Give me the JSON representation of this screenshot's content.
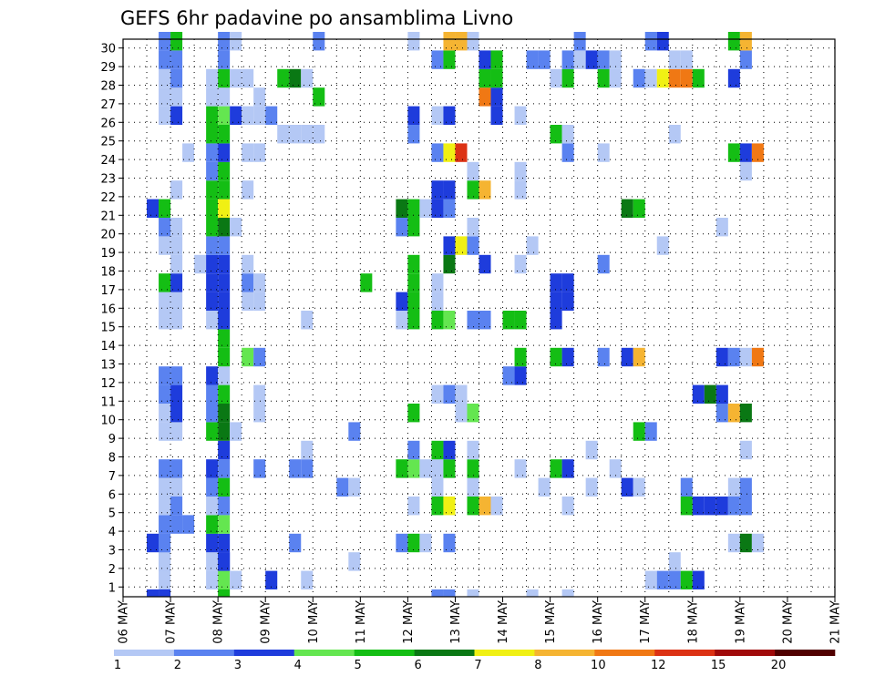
{
  "chart_data": {
    "type": "heatmap",
    "title": "GEFS 6hr padavine po ansamblima Livno",
    "xlabel": "",
    "ylabel": "",
    "x_ticks": [
      "06 MAY",
      "07 MAY",
      "08 MAY",
      "09 MAY",
      "10 MAY",
      "11 MAY",
      "12 MAY",
      "13 MAY",
      "14 MAY",
      "15 MAY",
      "16 MAY",
      "17 MAY",
      "18 MAY",
      "19 MAY",
      "20 MAY",
      "21 MAY"
    ],
    "y_ticks": [
      "1",
      "2",
      "3",
      "4",
      "5",
      "6",
      "7",
      "8",
      "9",
      "10",
      "11",
      "12",
      "13",
      "14",
      "15",
      "16",
      "17",
      "18",
      "19",
      "20",
      "21",
      "22",
      "23",
      "24",
      "25",
      "26",
      "27",
      "28",
      "29",
      "30"
    ],
    "grid": true,
    "steps_per_day": 4,
    "levels": [
      "1",
      "2",
      "3",
      "4",
      "5",
      "6",
      "7",
      "8",
      "10",
      "12",
      "15",
      "20"
    ],
    "colors": [
      "#b4c8f5",
      "#5a82f0",
      "#1e3cdc",
      "#64e650",
      "#14be14",
      "#0a7814",
      "#f0f014",
      "#f5b432",
      "#f07814",
      "#dc3214",
      "#a00a0a",
      "#500000"
    ],
    "cells": [
      [
        3,
        1,
        1
      ],
      [
        3,
        2,
        2
      ],
      [
        3,
        3,
        2
      ],
      [
        7,
        1,
        1
      ],
      [
        8,
        1,
        4
      ],
      [
        8,
        2,
        3
      ],
      [
        9,
        1,
        1
      ],
      [
        12,
        1,
        3
      ],
      [
        15,
        1,
        1
      ],
      [
        44,
        1,
        1
      ],
      [
        45,
        1,
        2
      ],
      [
        46,
        1,
        2
      ],
      [
        47,
        1,
        5
      ],
      [
        48,
        1,
        3
      ],
      [
        3,
        2,
        1
      ],
      [
        7,
        2,
        1
      ],
      [
        8,
        2,
        3
      ],
      [
        19,
        2,
        1
      ],
      [
        46,
        2,
        1
      ],
      [
        2,
        3,
        3
      ],
      [
        3,
        3,
        2
      ],
      [
        7,
        3,
        3
      ],
      [
        8,
        3,
        3
      ],
      [
        14,
        3,
        2
      ],
      [
        23,
        3,
        2
      ],
      [
        24,
        3,
        5
      ],
      [
        25,
        3,
        1
      ],
      [
        27,
        3,
        2
      ],
      [
        51,
        3,
        1
      ],
      [
        52,
        3,
        6
      ],
      [
        53,
        3,
        1
      ],
      [
        3,
        4,
        2
      ],
      [
        4,
        4,
        2
      ],
      [
        5,
        4,
        2
      ],
      [
        7,
        4,
        5
      ],
      [
        8,
        4,
        4
      ],
      [
        3,
        5,
        1
      ],
      [
        4,
        5,
        2
      ],
      [
        7,
        5,
        1
      ],
      [
        8,
        5,
        2
      ],
      [
        24,
        5,
        1
      ],
      [
        26,
        5,
        5
      ],
      [
        27,
        5,
        7
      ],
      [
        29,
        5,
        5
      ],
      [
        30,
        5,
        8
      ],
      [
        31,
        5,
        1
      ],
      [
        37,
        5,
        1
      ],
      [
        47,
        5,
        5
      ],
      [
        48,
        5,
        3
      ],
      [
        49,
        5,
        3
      ],
      [
        50,
        5,
        3
      ],
      [
        51,
        5,
        2
      ],
      [
        52,
        5,
        2
      ],
      [
        3,
        6,
        1
      ],
      [
        4,
        6,
        1
      ],
      [
        7,
        6,
        2
      ],
      [
        8,
        6,
        5
      ],
      [
        18,
        6,
        2
      ],
      [
        19,
        6,
        1
      ],
      [
        26,
        6,
        1
      ],
      [
        29,
        6,
        1
      ],
      [
        35,
        6,
        1
      ],
      [
        39,
        6,
        1
      ],
      [
        42,
        6,
        3
      ],
      [
        43,
        6,
        1
      ],
      [
        47,
        6,
        2
      ],
      [
        51,
        6,
        1
      ],
      [
        52,
        6,
        2
      ],
      [
        3,
        7,
        2
      ],
      [
        4,
        7,
        2
      ],
      [
        7,
        7,
        3
      ],
      [
        8,
        7,
        2
      ],
      [
        11,
        7,
        2
      ],
      [
        14,
        7,
        2
      ],
      [
        15,
        7,
        2
      ],
      [
        23,
        7,
        5
      ],
      [
        24,
        7,
        4
      ],
      [
        25,
        7,
        1
      ],
      [
        26,
        7,
        1
      ],
      [
        27,
        7,
        5
      ],
      [
        29,
        7,
        5
      ],
      [
        33,
        7,
        1
      ],
      [
        36,
        7,
        5
      ],
      [
        37,
        7,
        3
      ],
      [
        41,
        7,
        1
      ],
      [
        8,
        8,
        3
      ],
      [
        15,
        8,
        1
      ],
      [
        24,
        8,
        2
      ],
      [
        26,
        8,
        5
      ],
      [
        27,
        8,
        3
      ],
      [
        29,
        8,
        1
      ],
      [
        39,
        8,
        1
      ],
      [
        52,
        8,
        1
      ],
      [
        3,
        9,
        1
      ],
      [
        4,
        9,
        1
      ],
      [
        7,
        9,
        5
      ],
      [
        8,
        9,
        6
      ],
      [
        9,
        9,
        1
      ],
      [
        19,
        9,
        2
      ],
      [
        43,
        9,
        5
      ],
      [
        44,
        9,
        2
      ],
      [
        3,
        10,
        1
      ],
      [
        4,
        10,
        3
      ],
      [
        7,
        10,
        2
      ],
      [
        8,
        10,
        6
      ],
      [
        11,
        10,
        1
      ],
      [
        24,
        10,
        5
      ],
      [
        28,
        10,
        1
      ],
      [
        29,
        10,
        4
      ],
      [
        50,
        10,
        2
      ],
      [
        51,
        10,
        8
      ],
      [
        52,
        10,
        6
      ],
      [
        3,
        11,
        2
      ],
      [
        4,
        11,
        3
      ],
      [
        7,
        11,
        2
      ],
      [
        8,
        11,
        5
      ],
      [
        11,
        11,
        1
      ],
      [
        26,
        11,
        1
      ],
      [
        27,
        11,
        2
      ],
      [
        28,
        11,
        1
      ],
      [
        48,
        11,
        3
      ],
      [
        49,
        11,
        6
      ],
      [
        50,
        11,
        3
      ],
      [
        3,
        12,
        2
      ],
      [
        4,
        12,
        2
      ],
      [
        7,
        12,
        3
      ],
      [
        8,
        12,
        1
      ],
      [
        32,
        12,
        2
      ],
      [
        33,
        12,
        3
      ],
      [
        8,
        13,
        5
      ],
      [
        10,
        13,
        4
      ],
      [
        11,
        13,
        2
      ],
      [
        33,
        13,
        5
      ],
      [
        36,
        13,
        5
      ],
      [
        37,
        13,
        3
      ],
      [
        40,
        13,
        2
      ],
      [
        42,
        13,
        3
      ],
      [
        43,
        13,
        8
      ],
      [
        50,
        13,
        3
      ],
      [
        51,
        13,
        2
      ],
      [
        52,
        13,
        1
      ],
      [
        53,
        13,
        9
      ],
      [
        8,
        14,
        5
      ],
      [
        3,
        15,
        1
      ],
      [
        4,
        15,
        1
      ],
      [
        7,
        15,
        1
      ],
      [
        8,
        15,
        3
      ],
      [
        15,
        15,
        1
      ],
      [
        23,
        15,
        1
      ],
      [
        24,
        15,
        5
      ],
      [
        26,
        15,
        5
      ],
      [
        27,
        15,
        4
      ],
      [
        29,
        15,
        2
      ],
      [
        30,
        15,
        2
      ],
      [
        32,
        15,
        5
      ],
      [
        33,
        15,
        5
      ],
      [
        36,
        15,
        3
      ],
      [
        3,
        16,
        1
      ],
      [
        4,
        16,
        1
      ],
      [
        7,
        16,
        3
      ],
      [
        8,
        16,
        3
      ],
      [
        10,
        16,
        1
      ],
      [
        11,
        16,
        1
      ],
      [
        23,
        16,
        3
      ],
      [
        24,
        16,
        5
      ],
      [
        26,
        16,
        1
      ],
      [
        36,
        16,
        3
      ],
      [
        37,
        16,
        3
      ],
      [
        3,
        17,
        5
      ],
      [
        4,
        17,
        3
      ],
      [
        7,
        17,
        3
      ],
      [
        8,
        17,
        3
      ],
      [
        10,
        17,
        2
      ],
      [
        11,
        17,
        1
      ],
      [
        20,
        17,
        5
      ],
      [
        24,
        17,
        5
      ],
      [
        26,
        17,
        1
      ],
      [
        36,
        17,
        3
      ],
      [
        37,
        17,
        3
      ],
      [
        4,
        18,
        1
      ],
      [
        6,
        18,
        1
      ],
      [
        7,
        18,
        3
      ],
      [
        8,
        18,
        3
      ],
      [
        10,
        18,
        1
      ],
      [
        24,
        18,
        5
      ],
      [
        27,
        18,
        6
      ],
      [
        30,
        18,
        3
      ],
      [
        33,
        18,
        1
      ],
      [
        40,
        18,
        2
      ],
      [
        3,
        19,
        1
      ],
      [
        4,
        19,
        1
      ],
      [
        7,
        19,
        2
      ],
      [
        8,
        19,
        2
      ],
      [
        27,
        19,
        3
      ],
      [
        28,
        19,
        7
      ],
      [
        29,
        19,
        2
      ],
      [
        34,
        19,
        1
      ],
      [
        45,
        19,
        1
      ],
      [
        3,
        20,
        2
      ],
      [
        4,
        20,
        1
      ],
      [
        7,
        20,
        5
      ],
      [
        8,
        20,
        6
      ],
      [
        9,
        20,
        1
      ],
      [
        23,
        20,
        2
      ],
      [
        24,
        20,
        5
      ],
      [
        29,
        20,
        1
      ],
      [
        50,
        20,
        1
      ],
      [
        2,
        21,
        3
      ],
      [
        3,
        21,
        5
      ],
      [
        7,
        21,
        5
      ],
      [
        8,
        21,
        7
      ],
      [
        23,
        21,
        6
      ],
      [
        24,
        21,
        5
      ],
      [
        25,
        21,
        1
      ],
      [
        26,
        21,
        3
      ],
      [
        27,
        21,
        2
      ],
      [
        42,
        21,
        6
      ],
      [
        43,
        21,
        5
      ],
      [
        4,
        22,
        1
      ],
      [
        7,
        22,
        5
      ],
      [
        8,
        22,
        5
      ],
      [
        10,
        22,
        1
      ],
      [
        26,
        22,
        3
      ],
      [
        27,
        22,
        3
      ],
      [
        29,
        22,
        5
      ],
      [
        30,
        22,
        8
      ],
      [
        33,
        22,
        1
      ],
      [
        7,
        23,
        2
      ],
      [
        8,
        23,
        5
      ],
      [
        29,
        23,
        1
      ],
      [
        33,
        23,
        1
      ],
      [
        52,
        23,
        1
      ],
      [
        5,
        24,
        1
      ],
      [
        7,
        24,
        2
      ],
      [
        8,
        24,
        3
      ],
      [
        10,
        24,
        1
      ],
      [
        11,
        24,
        1
      ],
      [
        26,
        24,
        2
      ],
      [
        27,
        24,
        7
      ],
      [
        28,
        24,
        10
      ],
      [
        37,
        24,
        2
      ],
      [
        40,
        24,
        1
      ],
      [
        51,
        24,
        5
      ],
      [
        52,
        24,
        3
      ],
      [
        53,
        24,
        9
      ],
      [
        7,
        25,
        5
      ],
      [
        8,
        25,
        5
      ],
      [
        13,
        25,
        1
      ],
      [
        14,
        25,
        1
      ],
      [
        15,
        25,
        1
      ],
      [
        16,
        25,
        1
      ],
      [
        24,
        25,
        2
      ],
      [
        36,
        25,
        5
      ],
      [
        37,
        25,
        1
      ],
      [
        46,
        25,
        1
      ],
      [
        3,
        26,
        1
      ],
      [
        4,
        26,
        3
      ],
      [
        7,
        26,
        5
      ],
      [
        8,
        26,
        4
      ],
      [
        9,
        26,
        3
      ],
      [
        10,
        26,
        1
      ],
      [
        11,
        26,
        1
      ],
      [
        12,
        26,
        2
      ],
      [
        24,
        26,
        3
      ],
      [
        26,
        26,
        1
      ],
      [
        27,
        26,
        3
      ],
      [
        31,
        26,
        3
      ],
      [
        33,
        26,
        1
      ],
      [
        3,
        27,
        1
      ],
      [
        4,
        27,
        1
      ],
      [
        7,
        27,
        1
      ],
      [
        8,
        27,
        1
      ],
      [
        11,
        27,
        1
      ],
      [
        16,
        27,
        5
      ],
      [
        30,
        27,
        9
      ],
      [
        31,
        27,
        3
      ],
      [
        3,
        28,
        1
      ],
      [
        4,
        28,
        2
      ],
      [
        7,
        28,
        1
      ],
      [
        8,
        28,
        5
      ],
      [
        9,
        28,
        1
      ],
      [
        10,
        28,
        1
      ],
      [
        13,
        28,
        5
      ],
      [
        14,
        28,
        6
      ],
      [
        15,
        28,
        1
      ],
      [
        30,
        28,
        5
      ],
      [
        31,
        28,
        5
      ],
      [
        36,
        28,
        1
      ],
      [
        37,
        28,
        5
      ],
      [
        40,
        28,
        5
      ],
      [
        41,
        28,
        1
      ],
      [
        43,
        28,
        2
      ],
      [
        44,
        28,
        1
      ],
      [
        45,
        28,
        7
      ],
      [
        46,
        28,
        9
      ],
      [
        47,
        28,
        9
      ],
      [
        48,
        28,
        5
      ],
      [
        51,
        28,
        3
      ],
      [
        3,
        29,
        2
      ],
      [
        4,
        29,
        2
      ],
      [
        8,
        29,
        2
      ],
      [
        26,
        29,
        2
      ],
      [
        27,
        29,
        5
      ],
      [
        30,
        29,
        3
      ],
      [
        31,
        29,
        5
      ],
      [
        34,
        29,
        2
      ],
      [
        35,
        29,
        2
      ],
      [
        37,
        29,
        2
      ],
      [
        38,
        29,
        1
      ],
      [
        39,
        29,
        3
      ],
      [
        40,
        29,
        2
      ],
      [
        41,
        29,
        1
      ],
      [
        46,
        29,
        1
      ],
      [
        47,
        29,
        1
      ],
      [
        52,
        29,
        2
      ],
      [
        3,
        30,
        2
      ],
      [
        4,
        30,
        5
      ],
      [
        8,
        30,
        2
      ],
      [
        9,
        30,
        1
      ],
      [
        16,
        30,
        2
      ],
      [
        24,
        30,
        1
      ],
      [
        27,
        30,
        8
      ],
      [
        28,
        30,
        8
      ],
      [
        29,
        30,
        1
      ],
      [
        38,
        30,
        2
      ],
      [
        44,
        30,
        2
      ],
      [
        45,
        30,
        3
      ],
      [
        51,
        30,
        5
      ],
      [
        52,
        30,
        8
      ],
      [
        2,
        0,
        3
      ],
      [
        3,
        0,
        3
      ],
      [
        8,
        0,
        5
      ],
      [
        26,
        0,
        2
      ],
      [
        27,
        0,
        2
      ],
      [
        29,
        0,
        1
      ],
      [
        34,
        0,
        1
      ],
      [
        37,
        0,
        1
      ]
    ]
  }
}
